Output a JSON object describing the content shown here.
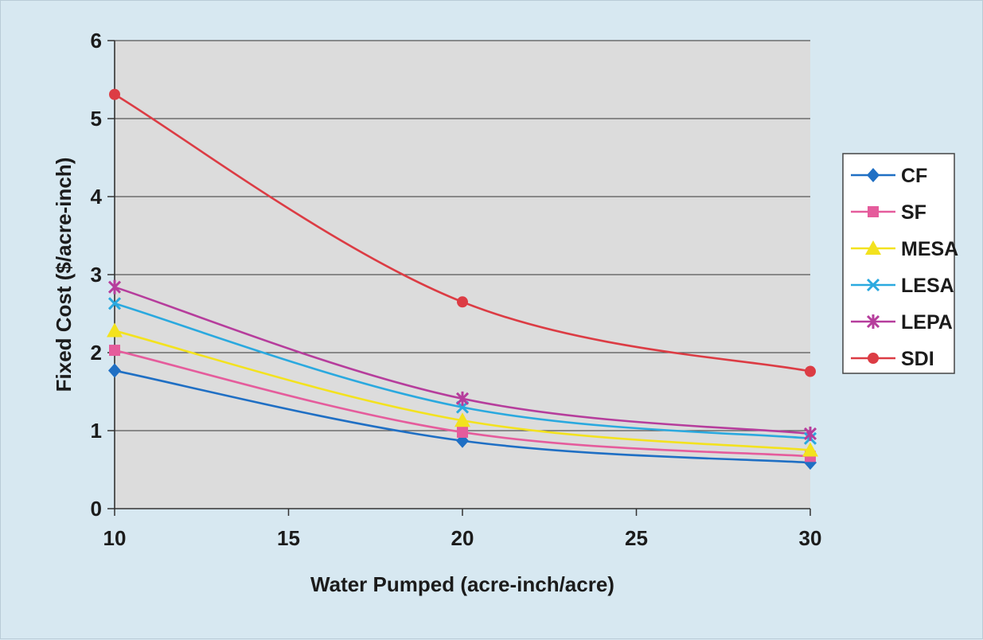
{
  "chart_data": {
    "type": "line",
    "title": "",
    "xlabel": "Water Pumped (acre-inch/acre)",
    "ylabel": "Fixed Cost ($/acre-inch)",
    "x": [
      10,
      20,
      30
    ],
    "xlim": [
      10,
      30
    ],
    "ylim": [
      0,
      6
    ],
    "x_ticks": [
      10,
      15,
      20,
      25,
      30
    ],
    "y_ticks": [
      0,
      1,
      2,
      3,
      4,
      5,
      6
    ],
    "grid": "horizontal",
    "legend_position": "right",
    "series": [
      {
        "name": "CF",
        "color": "#1f6fc4",
        "marker": "diamond",
        "values": [
          1.77,
          0.87,
          0.59
        ]
      },
      {
        "name": "SF",
        "color": "#e55c9c",
        "marker": "square",
        "values": [
          2.03,
          0.98,
          0.67
        ]
      },
      {
        "name": "MESA",
        "color": "#f3e21e",
        "marker": "triangle",
        "values": [
          2.28,
          1.13,
          0.75
        ]
      },
      {
        "name": "LESA",
        "color": "#2aa9df",
        "marker": "x",
        "values": [
          2.63,
          1.3,
          0.9
        ]
      },
      {
        "name": "LEPA",
        "color": "#b63d9c",
        "marker": "star",
        "values": [
          2.84,
          1.41,
          0.96
        ]
      },
      {
        "name": "SDI",
        "color": "#dc3c44",
        "marker": "circle",
        "values": [
          5.31,
          2.65,
          1.76
        ]
      }
    ]
  }
}
